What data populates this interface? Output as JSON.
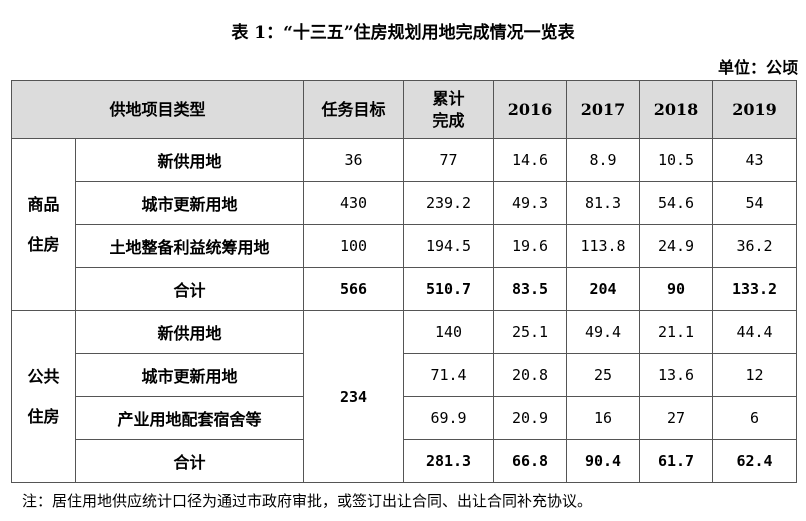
{
  "title": "表 1：“十三五”住房规划用地完成情况一览表",
  "unit": "单位：公顷",
  "headers": {
    "type": "供地项目类型",
    "target": "任务目标",
    "cumulative": "累计\n完成",
    "y2016": "2016",
    "y2017": "2017",
    "y2018": "2018",
    "y2019": "2019"
  },
  "commercial": {
    "category": "商品\n住房",
    "rows": [
      {
        "label": "新供用地",
        "target": "36",
        "cumulative": "77",
        "y2016": "14.6",
        "y2017": "8.9",
        "y2018": "10.5",
        "y2019": "43"
      },
      {
        "label": "城市更新用地",
        "target": "430",
        "cumulative": "239.2",
        "y2016": "49.3",
        "y2017": "81.3",
        "y2018": "54.6",
        "y2019": "54"
      },
      {
        "label": "土地整备利益统筹用地",
        "target": "100",
        "cumulative": "194.5",
        "y2016": "19.6",
        "y2017": "113.8",
        "y2018": "24.9",
        "y2019": "36.2"
      },
      {
        "label": "合计",
        "target": "566",
        "cumulative": "510.7",
        "y2016": "83.5",
        "y2017": "204",
        "y2018": "90",
        "y2019": "133.2"
      }
    ]
  },
  "public": {
    "category": "公共\n住房",
    "target": "234",
    "rows": [
      {
        "label": "新供用地",
        "cumulative": "140",
        "y2016": "25.1",
        "y2017": "49.4",
        "y2018": "21.1",
        "y2019": "44.4"
      },
      {
        "label": "城市更新用地",
        "cumulative": "71.4",
        "y2016": "20.8",
        "y2017": "25",
        "y2018": "13.6",
        "y2019": "12"
      },
      {
        "label": "产业用地配套宿舍等",
        "cumulative": "69.9",
        "y2016": "20.9",
        "y2017": "16",
        "y2018": "27",
        "y2019": "6"
      },
      {
        "label": "合计",
        "cumulative": "281.3",
        "y2016": "66.8",
        "y2017": "90.4",
        "y2018": "61.7",
        "y2019": "62.4"
      }
    ]
  },
  "note": "注：居住用地供应统计口径为通过市政府审批，或签订出让合同、出让合同补充协议。"
}
